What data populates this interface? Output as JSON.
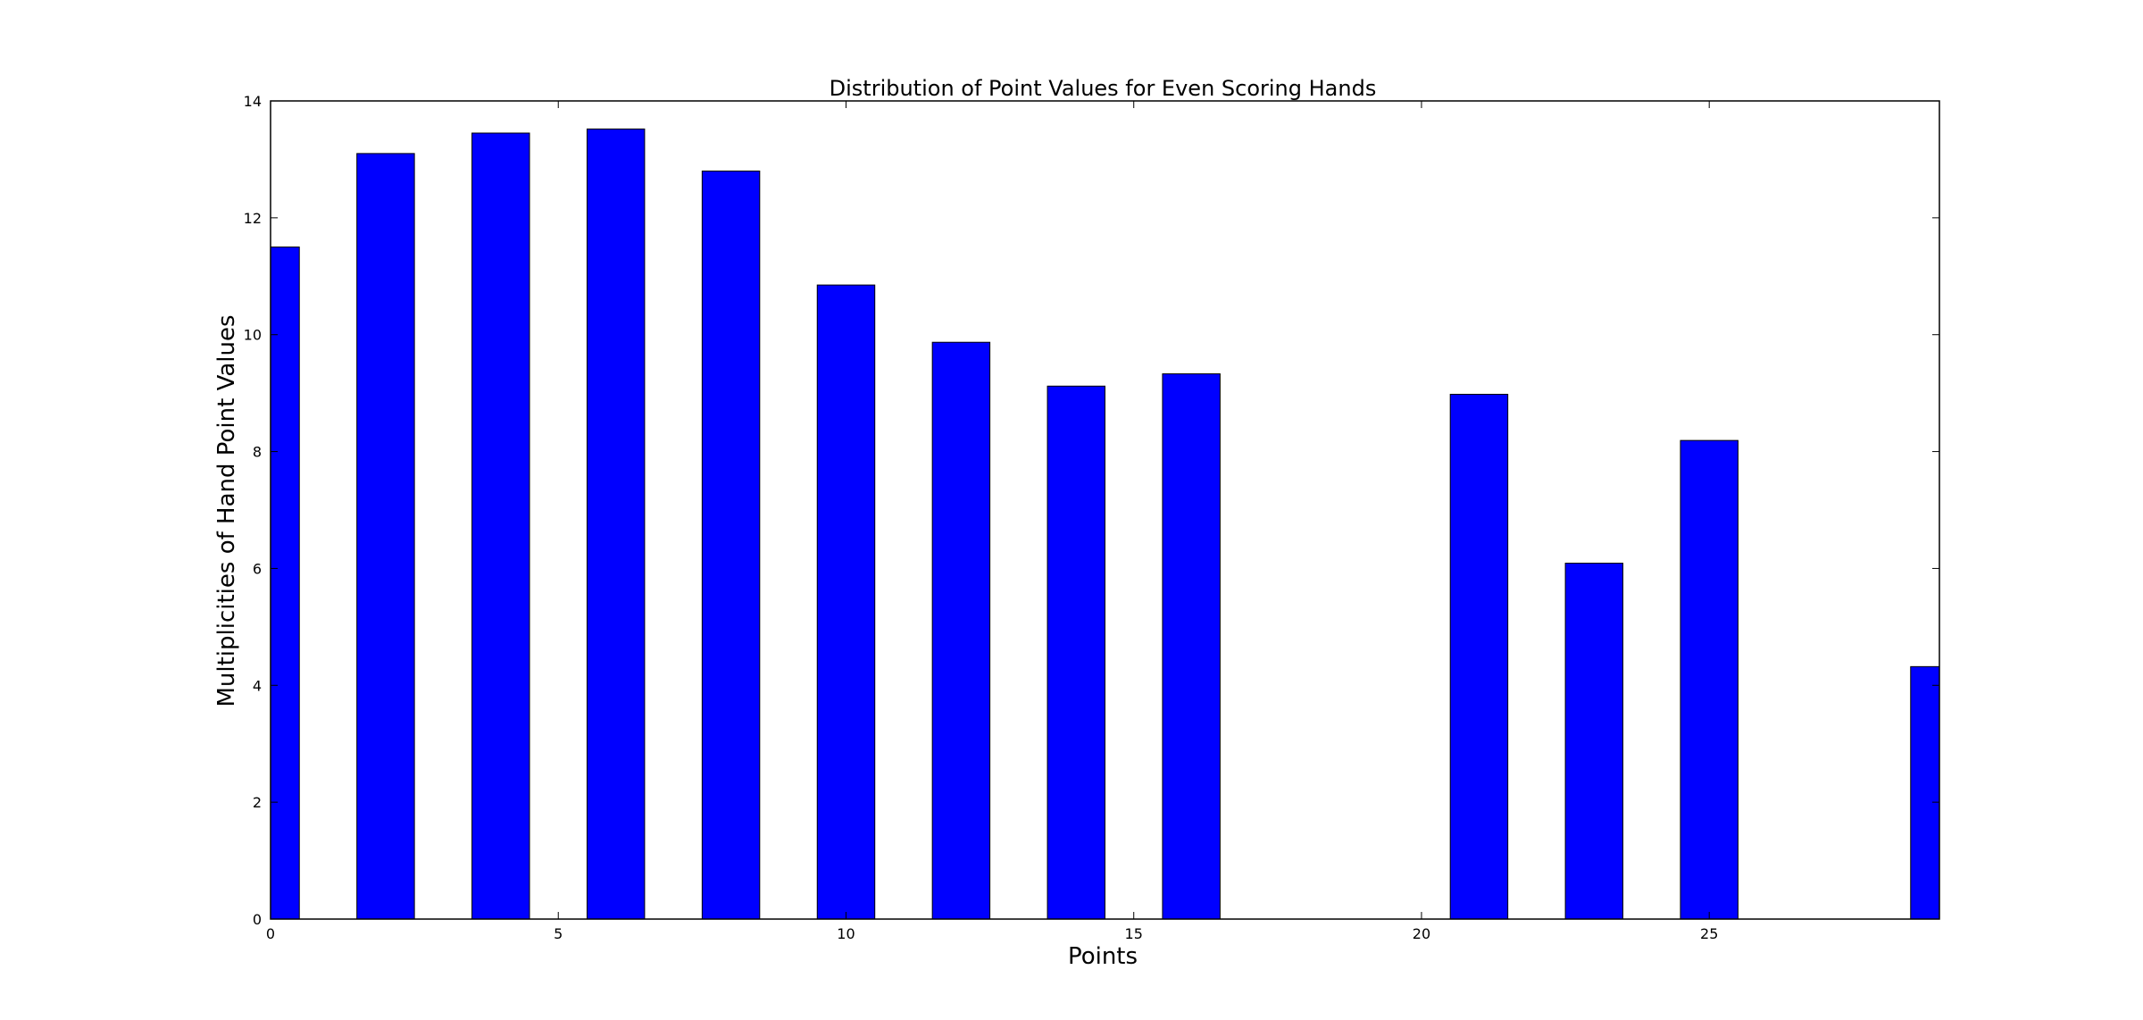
{
  "chart_data": {
    "type": "bar",
    "title": "Distribution of Point Values for Even Scoring Hands",
    "xlabel": "Points",
    "ylabel": "Multiplicities of Hand Point Values",
    "x": [
      0,
      2,
      4,
      6,
      8,
      10,
      12,
      14,
      16,
      18,
      20,
      21,
      23,
      25,
      27,
      29
    ],
    "values": [
      11.5,
      13.1,
      13.45,
      13.52,
      12.8,
      10.85,
      9.87,
      9.12,
      9.33,
      0.0,
      0.0,
      8.98,
      6.09,
      8.19,
      0.0,
      4.32
    ],
    "bar_width": 1.0,
    "xlim": [
      0,
      29
    ],
    "ylim": [
      0,
      14
    ],
    "xticks": [
      0,
      5,
      10,
      15,
      20,
      25
    ],
    "yticks": [
      0,
      2,
      4,
      6,
      8,
      10,
      12,
      14
    ],
    "bar_color": "#0000ff",
    "edge_color": "#000000",
    "grid": false,
    "legend": "none"
  }
}
